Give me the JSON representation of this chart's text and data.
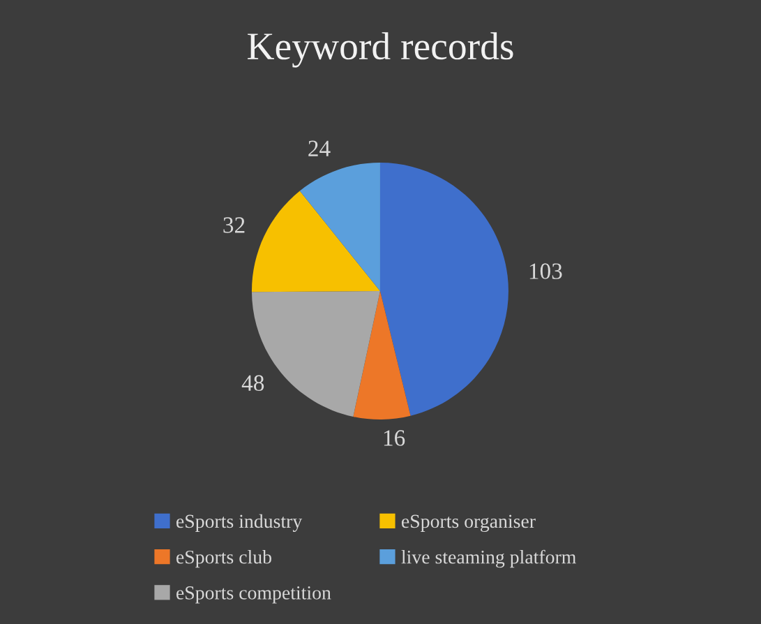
{
  "chart_data": {
    "type": "pie",
    "title": "Keyword records",
    "categories": [
      "eSports industry",
      "eSports club",
      "eSports competition",
      "eSports organiser",
      "live steaming platform"
    ],
    "values": [
      103,
      16,
      48,
      32,
      24
    ],
    "colors": [
      "#3f6fcc",
      "#ed7728",
      "#a8a8a8",
      "#f7c000",
      "#5b9fdc"
    ],
    "data_labels": true,
    "legend": "bottom"
  }
}
